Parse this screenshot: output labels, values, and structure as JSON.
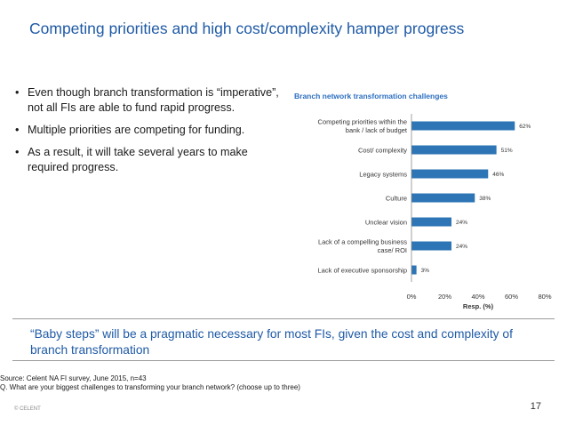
{
  "slide": {
    "title": "Competing priorities and high cost/complexity hamper progress",
    "bullets": [
      "Even though branch transformation is “imperative”, not all FIs are able to fund rapid progress.",
      "Multiple priorities are competing for funding.",
      "As a result, it will take several years to make required progress."
    ],
    "quote": "“Baby steps” will be a pragmatic necessary for most FIs, given the cost and complexity of branch transformation",
    "source": "Source: Celent NA FI survey, June 2015, n=43",
    "question": "Q. What are your biggest challenges to transforming your branch network? (choose up to three)",
    "brand": "© CELENT",
    "page_number": "17"
  },
  "chart_data": {
    "type": "bar",
    "orientation": "horizontal",
    "title": "Branch network transformation challenges",
    "xlabel": "Resp. (%)",
    "ylabel": "",
    "categories": [
      "Competing priorities within the bank / lack of budget",
      "Cost/ complexity",
      "Legacy systems",
      "Culture",
      "Unclear vision",
      "Lack of a compelling business case/ ROI",
      "Lack of executive sponsorship"
    ],
    "values": [
      62,
      51,
      46,
      38,
      24,
      24,
      3
    ],
    "value_labels": [
      "62%",
      "51%",
      "46%",
      "38%",
      "24%",
      "24%",
      "3%"
    ],
    "xlim": [
      0,
      80
    ],
    "x_ticks": [
      "0%",
      "20%",
      "40%",
      "60%",
      "80%"
    ],
    "grid": false,
    "legend": "none",
    "bar_color": "#2e75b6"
  }
}
